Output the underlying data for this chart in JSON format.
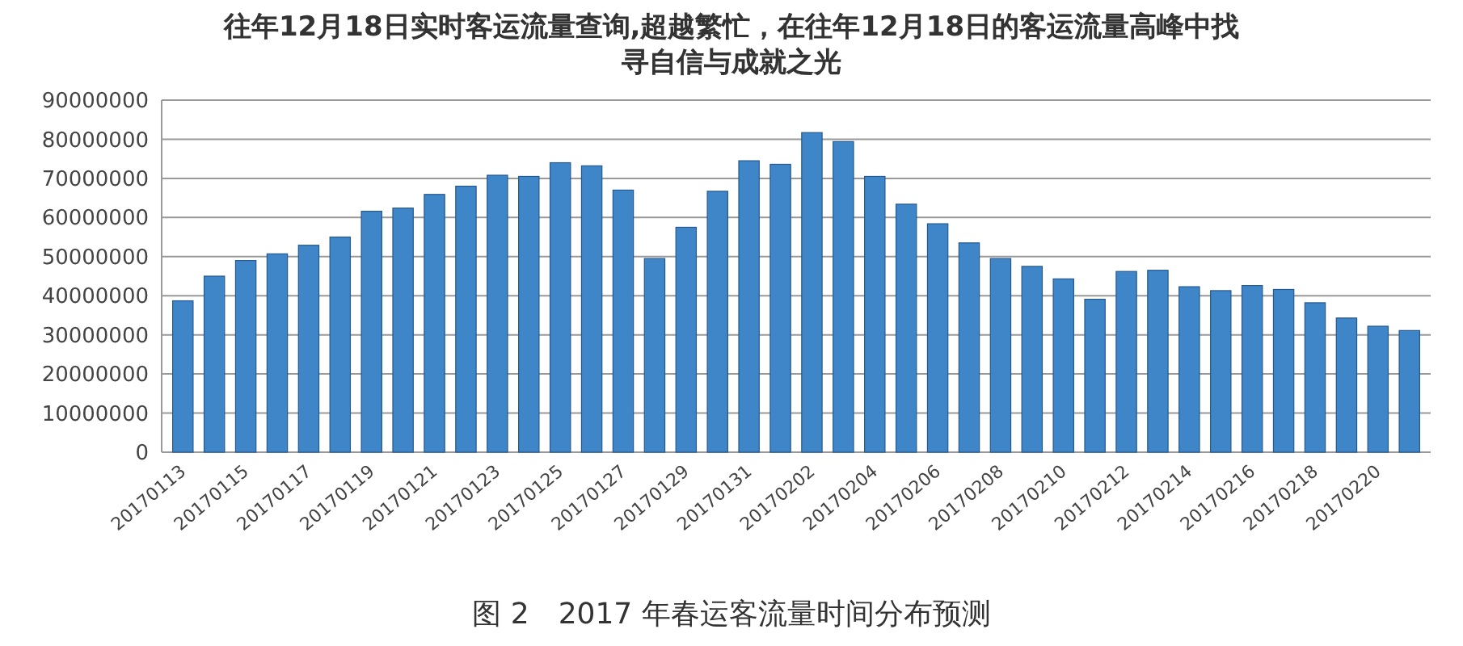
{
  "chart_data": {
    "type": "bar",
    "title": "往年12月18日实时客运流量查询,超越繁忙，在往年12月18日的客运流量高峰中找寻自信与成就之光",
    "annotations": [
      "图 2　2017 年春运客流量时间分布预测"
    ],
    "categories": [
      "20170113",
      null,
      "20170115",
      null,
      "20170117",
      null,
      "20170119",
      null,
      "20170121",
      null,
      "20170123",
      null,
      "20170125",
      null,
      "20170127",
      null,
      "20170129",
      null,
      "20170131",
      null,
      "20170202",
      null,
      "20170204",
      null,
      "20170206",
      null,
      "20170208",
      null,
      "20170210",
      null,
      "20170212",
      null,
      "20170214",
      null,
      "20170216",
      null,
      "20170218",
      null,
      "20170220",
      null
    ],
    "values": [
      38700000,
      45000000,
      49000000,
      50700000,
      52900000,
      55000000,
      61600000,
      62400000,
      65900000,
      68000000,
      70800000,
      70500000,
      74000000,
      73200000,
      67000000,
      49500000,
      57500000,
      66700000,
      74500000,
      73600000,
      81700000,
      79400000,
      70500000,
      63400000,
      58400000,
      53500000,
      49500000,
      47500000,
      44300000,
      39100000,
      46200000,
      46500000,
      42300000,
      41300000,
      42600000,
      41600000,
      38200000,
      34300000,
      32200000,
      31100000
    ],
    "color": "#3f86c9",
    "ylim": [
      0,
      90000000
    ],
    "yticks": [
      0,
      10000000,
      20000000,
      30000000,
      40000000,
      50000000,
      60000000,
      70000000,
      80000000,
      90000000
    ],
    "grid": "y"
  }
}
